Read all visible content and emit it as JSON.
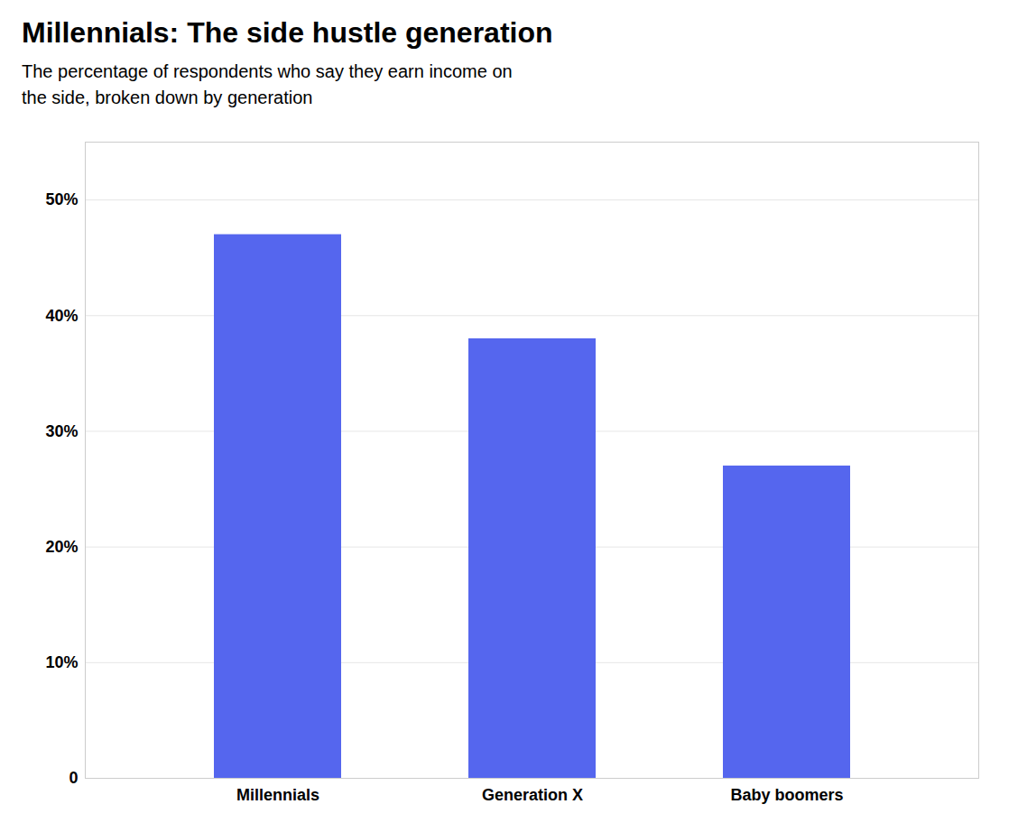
{
  "chart_data": {
    "type": "bar",
    "title": "Millennials: The side hustle generation",
    "subtitle": "The percentage of respondents who say they earn income on\nthe side, broken down by generation",
    "categories": [
      "Millennials",
      "Generation X",
      "Baby boomers"
    ],
    "values": [
      0.47,
      0.38,
      0.27
    ],
    "color": "#5566EE",
    "ylim": [
      0,
      0.55
    ],
    "yticks": [
      0,
      {
        "value": 0.1,
        "label": "10%"
      },
      {
        "value": 0.2,
        "label": "20%"
      },
      {
        "value": 0.3,
        "label": "30%"
      },
      {
        "value": 0.4,
        "label": "40%"
      },
      {
        "value": 0.5,
        "label": "50%"
      }
    ],
    "grid": true
  }
}
